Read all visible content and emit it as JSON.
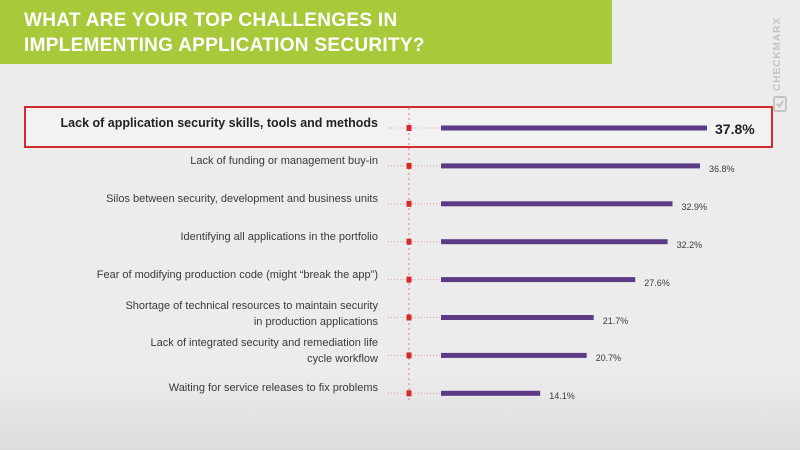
{
  "header": {
    "title_line1": "WHAT ARE YOUR TOP CHALLENGES IN",
    "title_line2": "IMPLEMENTING APPLICATION SECURITY?",
    "logo_text": "CHECKMARX"
  },
  "colors": {
    "header_band": "#a7c93a",
    "bar": "#5b3a86",
    "highlight_border": "#d42a2a",
    "marker": "#d42a2a"
  },
  "chart_data": {
    "type": "bar",
    "orientation": "horizontal",
    "title": "WHAT ARE YOUR TOP CHALLENGES IN IMPLEMENTING APPLICATION SECURITY?",
    "categories": [
      [
        "Lack of application security skills, tools and methods"
      ],
      [
        "Lack of funding or management buy-in"
      ],
      [
        "Silos between security, development  and business units"
      ],
      [
        "Identifying  all applications in the portfolio"
      ],
      [
        "Fear of modifying production code (might “break the app”)"
      ],
      [
        "Shortage  of technical resources to maintain security",
        "in production applications"
      ],
      [
        "Lack of integrated security and remediation  life",
        "cycle workflow"
      ],
      [
        "Waiting for service releases to fix problems"
      ]
    ],
    "values": [
      37.8,
      36.8,
      32.9,
      32.2,
      27.6,
      21.7,
      20.7,
      14.1
    ],
    "value_labels": [
      "37.8%",
      "36.8%",
      "32.9%",
      "32.2%",
      "27.6%",
      "21.7%",
      "20.7%",
      "14.1%"
    ],
    "unit": "%",
    "highlighted_index": 0,
    "xlim": [
      0,
      40
    ],
    "grid": false,
    "legend": "none"
  }
}
